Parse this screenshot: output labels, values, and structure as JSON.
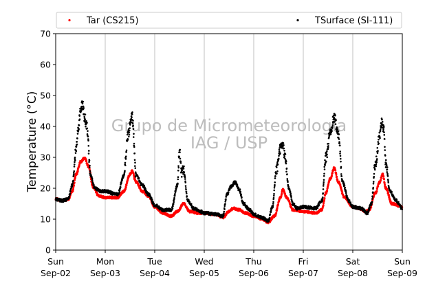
{
  "chart_data": {
    "type": "scatter",
    "ylabel": "Temperature (°C)",
    "ylim": [
      0,
      70
    ],
    "yticks": [
      0,
      10,
      20,
      30,
      40,
      50,
      60,
      70
    ],
    "xlim": [
      "2018-09-02 00:00",
      "2018-09-09 00:00"
    ],
    "xticks": [
      {
        "x": "2018-09-02 00:00",
        "day": "Sun",
        "date": "Sep-02"
      },
      {
        "x": "2018-09-03 00:00",
        "day": "Mon",
        "date": "Sep-03"
      },
      {
        "x": "2018-09-04 00:00",
        "day": "Tue",
        "date": "Sep-04"
      },
      {
        "x": "2018-09-05 00:00",
        "day": "Wed",
        "date": "Sep-05"
      },
      {
        "x": "2018-09-06 00:00",
        "day": "Thu",
        "date": "Sep-06"
      },
      {
        "x": "2018-09-07 00:00",
        "day": "Fri",
        "date": "Sep-07"
      },
      {
        "x": "2018-09-08 00:00",
        "day": "Sat",
        "date": "Sep-08"
      },
      {
        "x": "2018-09-09 00:00",
        "day": "Sun",
        "date": "Sep-09"
      }
    ],
    "grid": "vertical",
    "legend_position": "top",
    "watermark": [
      "Grupo de Micrometeorologia",
      "IAG / USP"
    ],
    "series": [
      {
        "name": "Tar (CS215)",
        "color": "#ff0000",
        "points": [
          [
            "2018-09-02 00:00",
            16.5
          ],
          [
            "2018-09-02 03:00",
            16.0
          ],
          [
            "2018-09-02 06:00",
            16.3
          ],
          [
            "2018-09-02 08:00",
            19.0
          ],
          [
            "2018-09-02 10:00",
            24.5
          ],
          [
            "2018-09-02 12:00",
            28.5
          ],
          [
            "2018-09-02 14:00",
            29.8
          ],
          [
            "2018-09-02 16:00",
            27.0
          ],
          [
            "2018-09-02 18:00",
            20.5
          ],
          [
            "2018-09-02 21:00",
            17.5
          ],
          [
            "2018-09-03 00:00",
            17.0
          ],
          [
            "2018-09-03 06:00",
            17.0
          ],
          [
            "2018-09-03 09:00",
            19.0
          ],
          [
            "2018-09-03 12:00",
            24.5
          ],
          [
            "2018-09-03 13:00",
            25.5
          ],
          [
            "2018-09-03 15:00",
            22.0
          ],
          [
            "2018-09-03 18:00",
            19.0
          ],
          [
            "2018-09-03 21:00",
            17.5
          ],
          [
            "2018-09-04 00:00",
            14.0
          ],
          [
            "2018-09-04 04:00",
            12.0
          ],
          [
            "2018-09-04 08:00",
            11.0
          ],
          [
            "2018-09-04 11:00",
            12.5
          ],
          [
            "2018-09-04 14:00",
            15.0
          ],
          [
            "2018-09-04 17:00",
            12.5
          ],
          [
            "2018-09-04 21:00",
            12.0
          ],
          [
            "2018-09-05 00:00",
            12.0
          ],
          [
            "2018-09-05 06:00",
            11.5
          ],
          [
            "2018-09-05 09:00",
            10.5
          ],
          [
            "2018-09-05 12:00",
            12.5
          ],
          [
            "2018-09-05 14:00",
            13.5
          ],
          [
            "2018-09-05 17:00",
            13.0
          ],
          [
            "2018-09-05 20:00",
            12.0
          ],
          [
            "2018-09-06 00:00",
            11.0
          ],
          [
            "2018-09-06 04:00",
            10.0
          ],
          [
            "2018-09-06 07:00",
            9.0
          ],
          [
            "2018-09-06 10:00",
            11.0
          ],
          [
            "2018-09-06 13:00",
            17.0
          ],
          [
            "2018-09-06 14:00",
            19.5
          ],
          [
            "2018-09-06 16:00",
            17.0
          ],
          [
            "2018-09-06 19:00",
            13.0
          ],
          [
            "2018-09-07 00:00",
            12.5
          ],
          [
            "2018-09-07 06:00",
            12.0
          ],
          [
            "2018-09-07 09:00",
            13.0
          ],
          [
            "2018-09-07 11:00",
            18.5
          ],
          [
            "2018-09-07 13:00",
            23.0
          ],
          [
            "2018-09-07 15:00",
            26.5
          ],
          [
            "2018-09-07 17:00",
            22.0
          ],
          [
            "2018-09-07 20:00",
            17.0
          ],
          [
            "2018-09-08 00:00",
            14.0
          ],
          [
            "2018-09-08 03:00",
            13.5
          ],
          [
            "2018-09-08 06:00",
            12.5
          ],
          [
            "2018-09-08 08:00",
            13.0
          ],
          [
            "2018-09-08 11:00",
            18.5
          ],
          [
            "2018-09-08 13:00",
            22.0
          ],
          [
            "2018-09-08 14:30",
            24.5
          ],
          [
            "2018-09-08 16:00",
            20.0
          ],
          [
            "2018-09-08 19:00",
            15.0
          ],
          [
            "2018-09-09 00:00",
            14.0
          ]
        ]
      },
      {
        "name": "TSurface (SI-111)",
        "color": "#000000",
        "points": [
          [
            "2018-09-02 00:00",
            16.5
          ],
          [
            "2018-09-02 03:00",
            16.0
          ],
          [
            "2018-09-02 06:00",
            16.5
          ],
          [
            "2018-09-02 08:00",
            21.0
          ],
          [
            "2018-09-02 10:00",
            33.0
          ],
          [
            "2018-09-02 11:00",
            40.0
          ],
          [
            "2018-09-02 12:00",
            45.0
          ],
          [
            "2018-09-02 13:00",
            47.0
          ],
          [
            "2018-09-02 14:00",
            43.0
          ],
          [
            "2018-09-02 15:00",
            40.0
          ],
          [
            "2018-09-02 17:00",
            24.0
          ],
          [
            "2018-09-02 19:00",
            20.0
          ],
          [
            "2018-09-02 22:00",
            19.0
          ],
          [
            "2018-09-03 00:00",
            19.0
          ],
          [
            "2018-09-03 06:00",
            18.0
          ],
          [
            "2018-09-03 09:00",
            24.0
          ],
          [
            "2018-09-03 11:00",
            37.0
          ],
          [
            "2018-09-03 13:00",
            43.5
          ],
          [
            "2018-09-03 15:00",
            24.0
          ],
          [
            "2018-09-03 18:00",
            21.0
          ],
          [
            "2018-09-03 21:00",
            18.0
          ],
          [
            "2018-09-04 00:00",
            14.5
          ],
          [
            "2018-09-04 04:00",
            13.0
          ],
          [
            "2018-09-04 08:00",
            13.0
          ],
          [
            "2018-09-04 11:00",
            21.0
          ],
          [
            "2018-09-04 12:00",
            32.0
          ],
          [
            "2018-09-04 13:00",
            25.0
          ],
          [
            "2018-09-04 14:00",
            26.0
          ],
          [
            "2018-09-04 16:00",
            16.0
          ],
          [
            "2018-09-04 19:00",
            13.5
          ],
          [
            "2018-09-04 22:00",
            12.5
          ],
          [
            "2018-09-05 00:00",
            12.0
          ],
          [
            "2018-09-05 06:00",
            11.5
          ],
          [
            "2018-09-05 09:00",
            11.0
          ],
          [
            "2018-09-05 11:00",
            18.0
          ],
          [
            "2018-09-05 13:00",
            20.5
          ],
          [
            "2018-09-05 15:00",
            22.0
          ],
          [
            "2018-09-05 17:00",
            19.5
          ],
          [
            "2018-09-05 19:00",
            15.0
          ],
          [
            "2018-09-05 22:00",
            13.0
          ],
          [
            "2018-09-06 00:00",
            11.5
          ],
          [
            "2018-09-06 04:00",
            10.5
          ],
          [
            "2018-09-06 07:00",
            9.5
          ],
          [
            "2018-09-06 09:00",
            14.0
          ],
          [
            "2018-09-06 11:00",
            26.0
          ],
          [
            "2018-09-06 13:00",
            33.0
          ],
          [
            "2018-09-06 14:00",
            34.5
          ],
          [
            "2018-09-06 15:00",
            31.0
          ],
          [
            "2018-09-06 17:00",
            20.0
          ],
          [
            "2018-09-06 19:00",
            15.0
          ],
          [
            "2018-09-06 21:00",
            13.5
          ],
          [
            "2018-09-07 00:00",
            14.0
          ],
          [
            "2018-09-07 06:00",
            13.5
          ],
          [
            "2018-09-07 09:00",
            16.0
          ],
          [
            "2018-09-07 11:00",
            30.0
          ],
          [
            "2018-09-07 13:00",
            38.0
          ],
          [
            "2018-09-07 15:00",
            43.0
          ],
          [
            "2018-09-07 17:00",
            37.0
          ],
          [
            "2018-09-07 19:00",
            22.0
          ],
          [
            "2018-09-07 22:00",
            16.0
          ],
          [
            "2018-09-08 00:00",
            14.0
          ],
          [
            "2018-09-08 04:00",
            13.5
          ],
          [
            "2018-09-08 07:00",
            12.0
          ],
          [
            "2018-09-08 09:00",
            15.0
          ],
          [
            "2018-09-08 11:00",
            28.0
          ],
          [
            "2018-09-08 13:00",
            37.0
          ],
          [
            "2018-09-08 14:00",
            41.0
          ],
          [
            "2018-09-08 15:00",
            39.0
          ],
          [
            "2018-09-08 16:00",
            28.0
          ],
          [
            "2018-09-08 18:00",
            19.0
          ],
          [
            "2018-09-08 21:00",
            16.0
          ],
          [
            "2018-09-09 00:00",
            13.5
          ]
        ]
      }
    ]
  }
}
